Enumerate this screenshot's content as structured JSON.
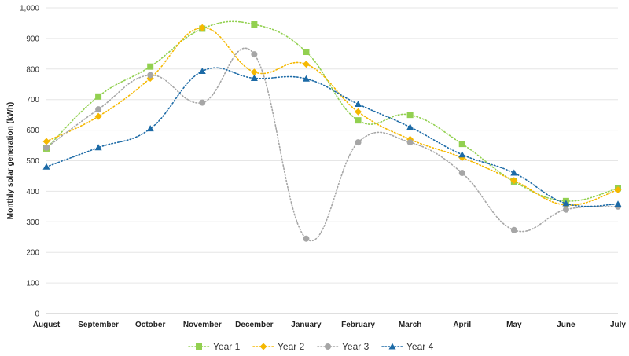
{
  "chart_data": {
    "type": "line",
    "title": "",
    "xlabel": "",
    "ylabel": "Monthly solar generation (kWh)",
    "ylim": [
      0,
      1000
    ],
    "yticks": [
      "0",
      "100",
      "200",
      "300",
      "400",
      "500",
      "600",
      "700",
      "800",
      "900",
      "1,000"
    ],
    "ytick_values": [
      0,
      100,
      200,
      300,
      400,
      500,
      600,
      700,
      800,
      900,
      1000
    ],
    "grid": true,
    "legend_position": "bottom",
    "categories": [
      "August",
      "September",
      "October",
      "November",
      "December",
      "January",
      "February",
      "March",
      "April",
      "May",
      "June",
      "July"
    ],
    "series": [
      {
        "name": "Year 1",
        "color": "#92d050",
        "marker": "square",
        "values": [
          540,
          710,
          808,
          932,
          946,
          856,
          632,
          650,
          555,
          432,
          368,
          410
        ]
      },
      {
        "name": "Year 2",
        "color": "#f5b800",
        "marker": "diamond",
        "values": [
          563,
          645,
          770,
          935,
          790,
          816,
          660,
          570,
          510,
          435,
          355,
          405
        ]
      },
      {
        "name": "Year 3",
        "color": "#a6a6a6",
        "marker": "circle",
        "values": [
          543,
          668,
          780,
          690,
          848,
          245,
          560,
          560,
          460,
          273,
          340,
          350
        ]
      },
      {
        "name": "Year 4",
        "color": "#1c6aa6",
        "marker": "triangle",
        "values": [
          480,
          543,
          605,
          793,
          770,
          768,
          685,
          610,
          520,
          460,
          360,
          358
        ]
      }
    ]
  }
}
